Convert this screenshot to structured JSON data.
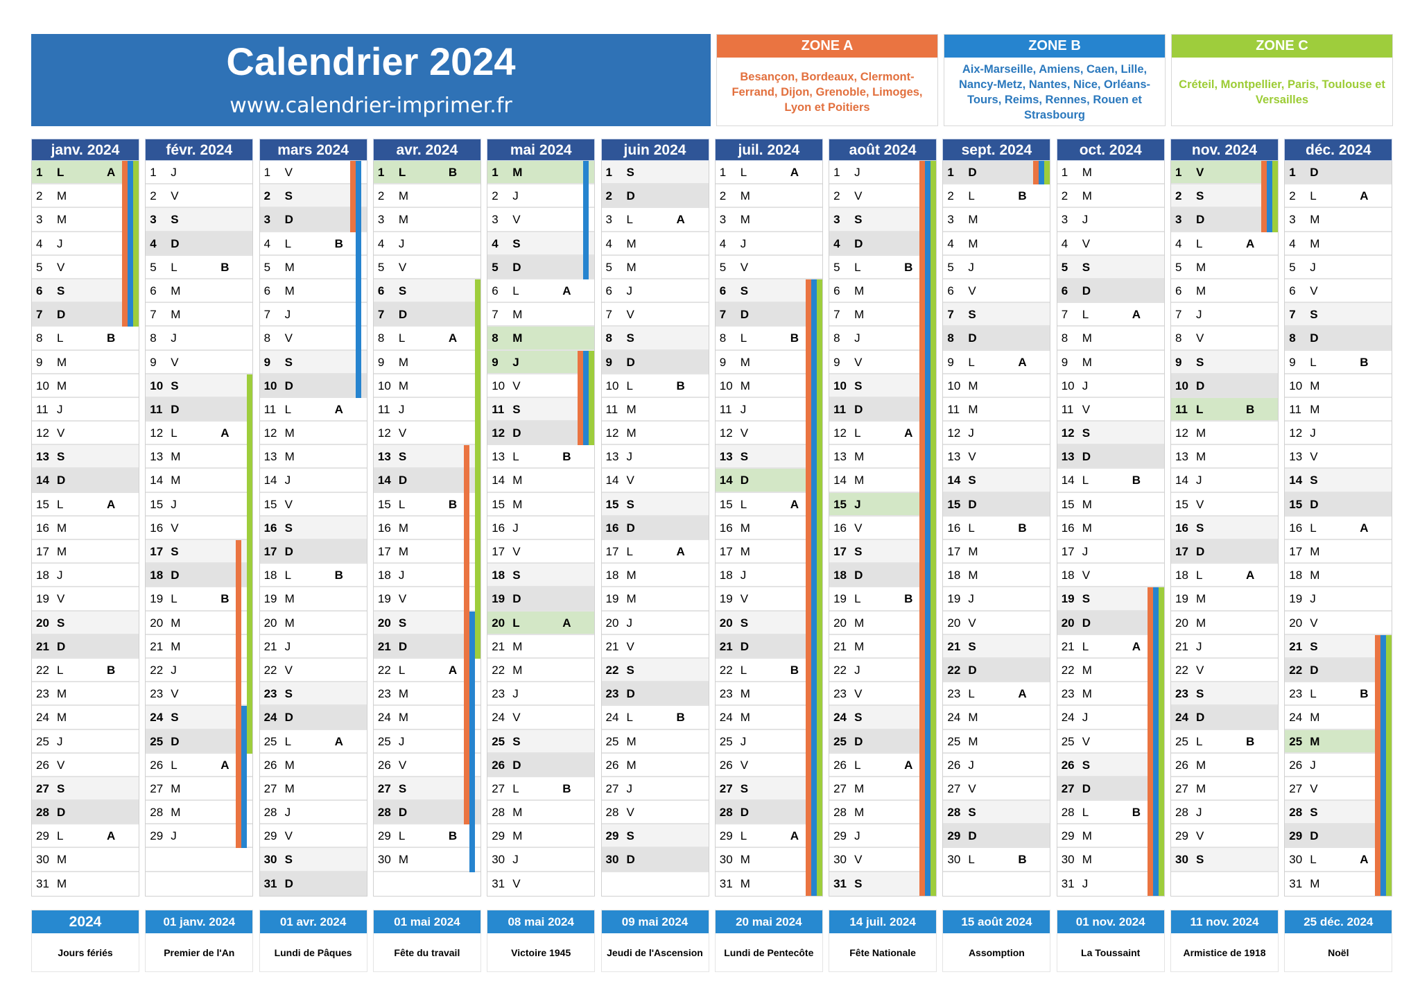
{
  "header": {
    "title": "Calendrier 2024",
    "website": "www.calendrier-imprimer.fr"
  },
  "zones": [
    {
      "label": "ZONE A",
      "color": "#ea7441",
      "cities": "Besançon, Bordeaux, Clermont-Ferrand, Dijon, Grenoble, Limoges, Lyon et Poitiers"
    },
    {
      "label": "ZONE B",
      "color": "#2684cf",
      "cities": "Aix-Marseille, Amiens, Caen, Lille, Nancy-Metz, Nantes, Nice, Orléans-Tours, Reims, Rennes, Rouen et Strasbourg"
    },
    {
      "label": "ZONE C",
      "color": "#9ecd3c",
      "cities": "Créteil, Montpellier, Paris, Toulouse et Versailles"
    }
  ],
  "colors": {
    "month_header": "#2f5597",
    "saturday": "#f3f3f3",
    "sunday": "#e2e2e2",
    "holiday": "#d3e7c6",
    "zone_a": "#ea7441",
    "zone_b": "#2684cf",
    "zone_c": "#9ecd3c"
  },
  "months": [
    {
      "label": "janv. 2024",
      "first_dow": 0,
      "days": 31,
      "week_letters": {
        "1": "A",
        "8": "B",
        "15": "A",
        "22": "B",
        "29": "A"
      },
      "holidays": [
        1
      ],
      "vacations": {
        "A": [
          [
            1,
            7
          ]
        ],
        "B": [
          [
            1,
            7
          ]
        ],
        "C": [
          [
            1,
            7
          ]
        ]
      }
    },
    {
      "label": "févr. 2024",
      "first_dow": 3,
      "days": 29,
      "week_letters": {
        "5": "B",
        "12": "A",
        "19": "B",
        "26": "A"
      },
      "holidays": [],
      "vacations": {
        "A": [
          [
            17,
            29
          ]
        ],
        "B": [
          [
            24,
            29
          ]
        ],
        "C": [
          [
            10,
            25
          ]
        ]
      }
    },
    {
      "label": "mars 2024",
      "first_dow": 4,
      "days": 31,
      "week_letters": {
        "4": "B",
        "11": "A",
        "18": "B",
        "25": "A"
      },
      "holidays": [],
      "vacations": {
        "A": [
          [
            1,
            3
          ]
        ],
        "B": [
          [
            1,
            10
          ]
        ],
        "C": []
      }
    },
    {
      "label": "avr. 2024",
      "first_dow": 0,
      "days": 30,
      "week_letters": {
        "1": "B",
        "8": "A",
        "15": "B",
        "22": "A",
        "29": "B"
      },
      "holidays": [
        1
      ],
      "vacations": {
        "A": [
          [
            13,
            28
          ]
        ],
        "B": [
          [
            20,
            30
          ]
        ],
        "C": [
          [
            6,
            21
          ]
        ]
      }
    },
    {
      "label": "mai 2024",
      "first_dow": 2,
      "days": 31,
      "week_letters": {
        "6": "A",
        "13": "B",
        "20": "A",
        "27": "B"
      },
      "holidays": [
        1,
        8,
        9,
        20
      ],
      "vacations": {
        "A": [
          [
            9,
            12
          ]
        ],
        "B": [
          [
            1,
            5
          ],
          [
            9,
            12
          ]
        ],
        "C": [
          [
            9,
            12
          ]
        ]
      }
    },
    {
      "label": "juin 2024",
      "first_dow": 5,
      "days": 30,
      "week_letters": {
        "3": "A",
        "10": "B",
        "17": "A",
        "24": "B"
      },
      "holidays": [],
      "vacations": {
        "A": [],
        "B": [],
        "C": []
      }
    },
    {
      "label": "juil. 2024",
      "first_dow": 0,
      "days": 31,
      "week_letters": {
        "1": "A",
        "8": "B",
        "15": "A",
        "22": "B",
        "29": "A"
      },
      "holidays": [
        14
      ],
      "vacations": {
        "A": [
          [
            6,
            31
          ]
        ],
        "B": [
          [
            6,
            31
          ]
        ],
        "C": [
          [
            6,
            31
          ]
        ]
      }
    },
    {
      "label": "août 2024",
      "first_dow": 3,
      "days": 31,
      "week_letters": {
        "5": "B",
        "12": "A",
        "19": "B",
        "26": "A"
      },
      "holidays": [
        15
      ],
      "vacations": {
        "A": [
          [
            1,
            31
          ]
        ],
        "B": [
          [
            1,
            31
          ]
        ],
        "C": [
          [
            1,
            31
          ]
        ]
      }
    },
    {
      "label": "sept. 2024",
      "first_dow": 6,
      "days": 30,
      "week_letters": {
        "2": "B",
        "9": "A",
        "16": "B",
        "23": "A",
        "30": "B"
      },
      "holidays": [],
      "vacations": {
        "A": [
          [
            1,
            1
          ]
        ],
        "B": [
          [
            1,
            1
          ]
        ],
        "C": [
          [
            1,
            1
          ]
        ]
      }
    },
    {
      "label": "oct. 2024",
      "first_dow": 1,
      "days": 31,
      "week_letters": {
        "7": "A",
        "14": "B",
        "21": "A",
        "28": "B"
      },
      "holidays": [],
      "vacations": {
        "A": [
          [
            19,
            31
          ]
        ],
        "B": [
          [
            19,
            31
          ]
        ],
        "C": [
          [
            19,
            31
          ]
        ]
      }
    },
    {
      "label": "nov. 2024",
      "first_dow": 4,
      "days": 30,
      "week_letters": {
        "4": "A",
        "11": "B",
        "18": "A",
        "25": "B"
      },
      "holidays": [
        1,
        11
      ],
      "vacations": {
        "A": [
          [
            1,
            3
          ]
        ],
        "B": [
          [
            1,
            3
          ]
        ],
        "C": [
          [
            1,
            3
          ]
        ]
      }
    },
    {
      "label": "déc. 2024",
      "first_dow": 6,
      "days": 31,
      "week_letters": {
        "2": "A",
        "9": "B",
        "16": "A",
        "23": "B",
        "30": "A"
      },
      "holidays": [
        25
      ],
      "vacations": {
        "A": [
          [
            21,
            31
          ]
        ],
        "B": [
          [
            21,
            31
          ]
        ],
        "C": [
          [
            21,
            31
          ]
        ]
      }
    }
  ],
  "day_letters": [
    "L",
    "M",
    "M",
    "J",
    "V",
    "S",
    "D"
  ],
  "holidays_footer": [
    {
      "date": "2024",
      "name": "Jours fériés"
    },
    {
      "date": "01 janv. 2024",
      "name": "Premier de l'An"
    },
    {
      "date": "01 avr. 2024",
      "name": "Lundi de Pâques"
    },
    {
      "date": "01 mai 2024",
      "name": "Fête du travail"
    },
    {
      "date": "08 mai 2024",
      "name": "Victoire 1945"
    },
    {
      "date": "09 mai 2024",
      "name": "Jeudi de l'Ascension"
    },
    {
      "date": "20 mai 2024",
      "name": "Lundi de Pentecôte"
    },
    {
      "date": "14 juil. 2024",
      "name": "Fête Nationale"
    },
    {
      "date": "15 août 2024",
      "name": "Assomption"
    },
    {
      "date": "01 nov. 2024",
      "name": "La Toussaint"
    },
    {
      "date": "11 nov. 2024",
      "name": "Armistice de 1918"
    },
    {
      "date": "25 déc. 2024",
      "name": "Noël"
    }
  ]
}
